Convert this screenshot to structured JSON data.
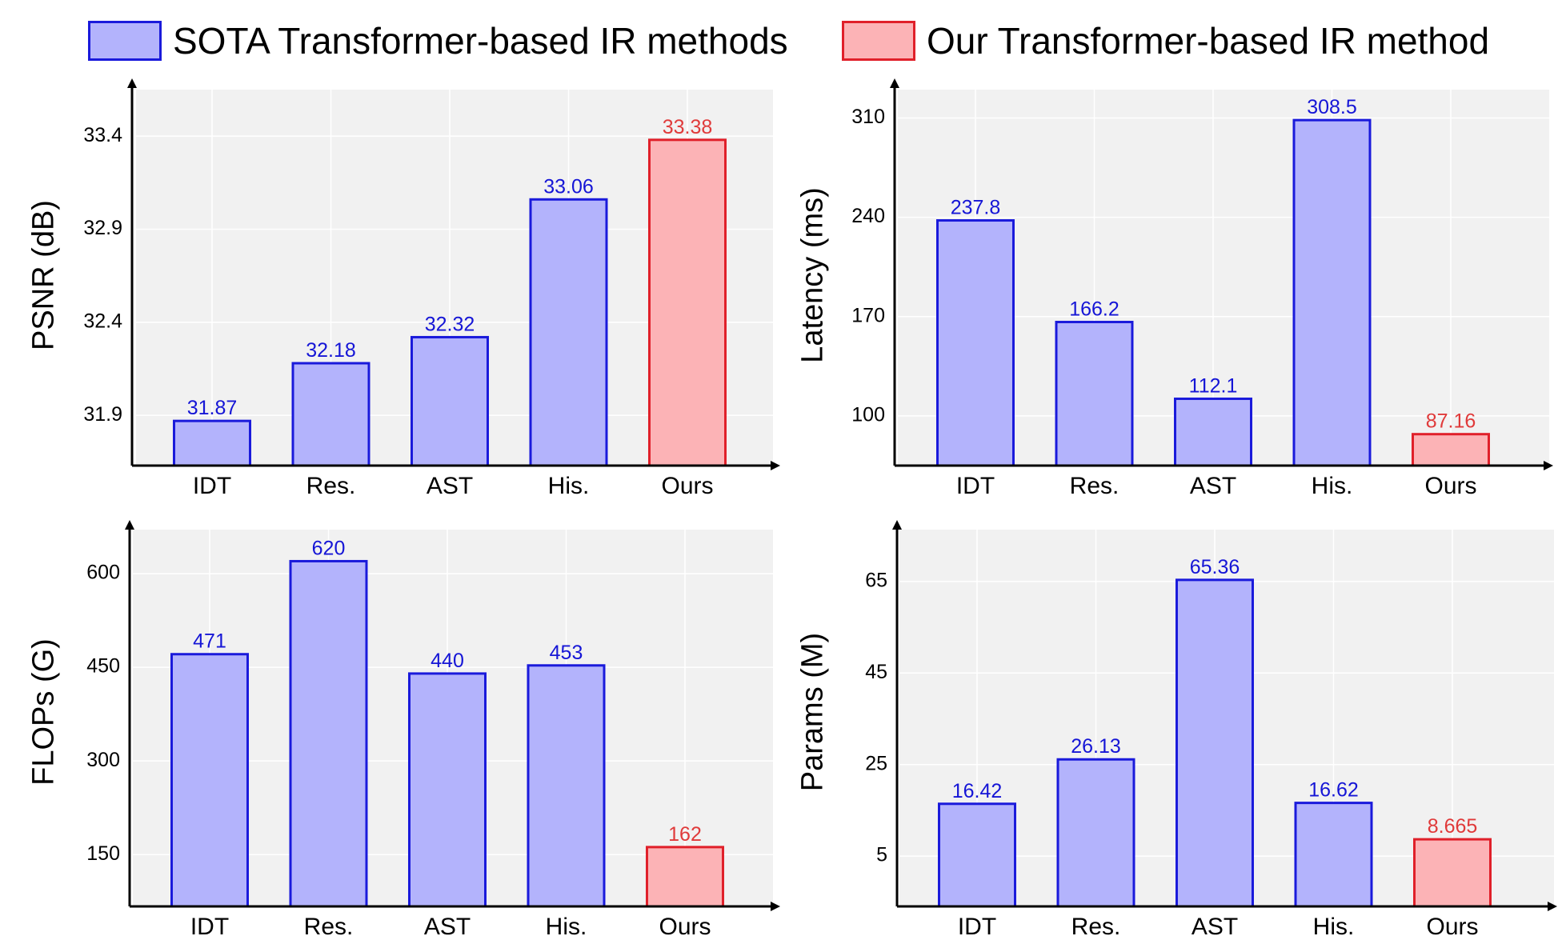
{
  "legend": {
    "sota_label": "SOTA Transformer-based IR methods",
    "ours_label": "Our Transformer-based IR method"
  },
  "colors": {
    "sota_fill": "#b3b3fc",
    "sota_edge": "#1a1adb",
    "ours_fill": "#fcb3b6",
    "ours_edge": "#e0202a",
    "sota_text": "#1515d6",
    "ours_text": "#e03a3a",
    "plot_bg": "#f1f1f1",
    "grid": "#ffffff"
  },
  "chart_data": [
    {
      "type": "bar",
      "title": "",
      "xlabel": "",
      "ylabel": "PSNR (dB)",
      "categories": [
        "IDT",
        "Res.",
        "AST",
        "His.",
        "Ours"
      ],
      "values": [
        31.87,
        32.18,
        32.32,
        33.06,
        33.38
      ],
      "value_labels": [
        "31.87",
        "32.18",
        "32.32",
        "33.06",
        "33.38"
      ],
      "highlight_index": 4,
      "ylim": [
        31.63,
        33.65
      ],
      "yticks": [
        31.9,
        32.4,
        32.9,
        33.4
      ],
      "ytick_labels": [
        "31.9",
        "32.4",
        "32.9",
        "33.4"
      ],
      "grid": true
    },
    {
      "type": "bar",
      "title": "",
      "xlabel": "",
      "ylabel": "Latency (ms)",
      "categories": [
        "IDT",
        "Res.",
        "AST",
        "His.",
        "Ours"
      ],
      "values": [
        237.8,
        166.2,
        112.1,
        308.5,
        87.16
      ],
      "value_labels": [
        "237.8",
        "166.2",
        "112.1",
        "308.5",
        "87.16"
      ],
      "highlight_index": 4,
      "ylim": [
        65,
        330
      ],
      "yticks": [
        100,
        170,
        240,
        310
      ],
      "ytick_labels": [
        "100",
        "170",
        "240",
        "310"
      ],
      "grid": true
    },
    {
      "type": "bar",
      "title": "",
      "xlabel": "",
      "ylabel": "FLOPs (G)",
      "categories": [
        "IDT",
        "Res.",
        "AST",
        "His.",
        "Ours"
      ],
      "values": [
        471,
        620,
        440,
        453,
        162
      ],
      "value_labels": [
        "471",
        "620",
        "440",
        "453",
        "162"
      ],
      "highlight_index": 4,
      "ylim": [
        67,
        668
      ],
      "yticks": [
        150,
        300,
        450,
        600
      ],
      "ytick_labels": [
        "150",
        "300",
        "450",
        "600"
      ],
      "grid": true
    },
    {
      "type": "bar",
      "title": "",
      "xlabel": "",
      "ylabel": "Params (M)",
      "categories": [
        "IDT",
        "Res.",
        "AST",
        "His.",
        "Ours"
      ],
      "values": [
        16.42,
        26.13,
        65.36,
        16.62,
        8.665
      ],
      "value_labels": [
        "16.42",
        "26.13",
        "65.36",
        "16.62",
        "8.665"
      ],
      "highlight_index": 4,
      "ylim": [
        -6,
        76
      ],
      "yticks": [
        5,
        25,
        45,
        65
      ],
      "ytick_labels": [
        "5",
        "25",
        "45",
        "65"
      ],
      "grid": true
    }
  ]
}
